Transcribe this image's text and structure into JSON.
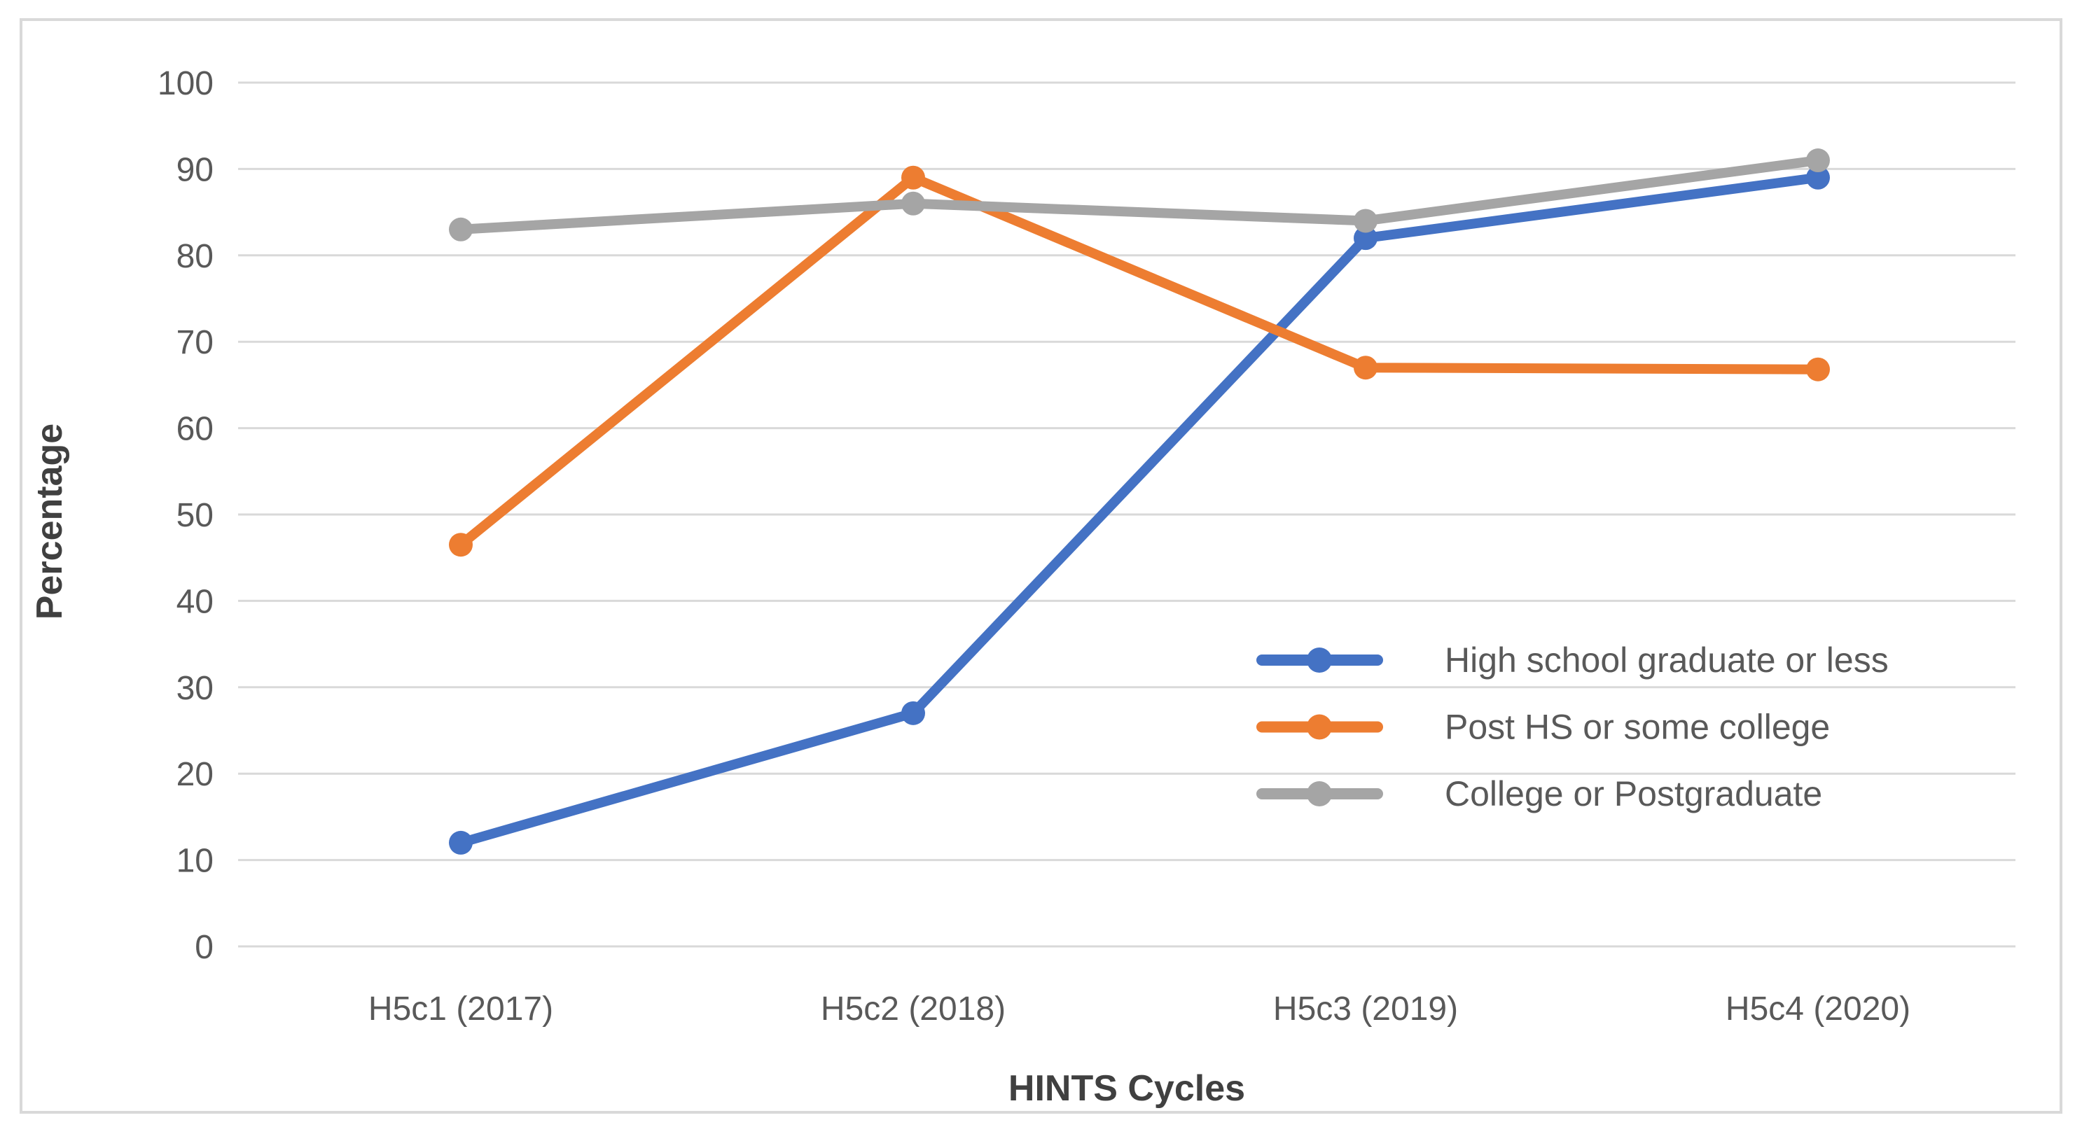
{
  "chart_data": {
    "type": "line",
    "title": "",
    "xlabel": "HINTS Cycles",
    "ylabel": "Percentage",
    "categories": [
      "H5c1 (2017)",
      "H5c2 (2018)",
      "H5c3 (2019)",
      "H5c4 (2020)"
    ],
    "series": [
      {
        "name": "High school graduate or less",
        "color": "#4472C4",
        "values": [
          12,
          27,
          82,
          89
        ]
      },
      {
        "name": "Post HS or some college",
        "color": "#ED7D31",
        "values": [
          46.5,
          89,
          67,
          66.8
        ]
      },
      {
        "name": "College or Postgraduate",
        "color": "#A5A5A5",
        "values": [
          83,
          86,
          84,
          91
        ]
      }
    ],
    "ylim": [
      0,
      100
    ],
    "ytick_step": 10,
    "yticks": [
      0,
      10,
      20,
      30,
      40,
      50,
      60,
      70,
      80,
      90,
      100
    ],
    "grid": true,
    "legend_position": "inside-right",
    "marker": "circle"
  },
  "colors": {
    "background": "#FFFFFF",
    "gridline": "#D9D9D9",
    "chart_border": "#D9D9D9",
    "tick_text": "#595959",
    "axis_title_text": "#404040"
  }
}
